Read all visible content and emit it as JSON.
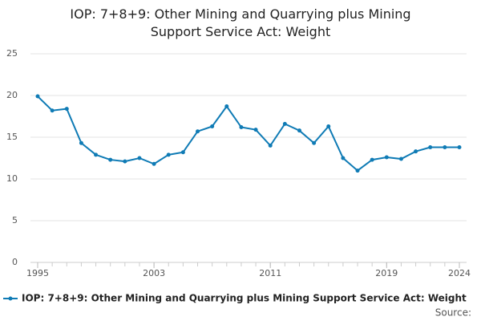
{
  "chart_data": {
    "type": "line",
    "title": "IOP: 7+8+9: Other Mining and Quarrying plus Mining Support Service Act: Weight",
    "x": [
      1995,
      1996,
      1997,
      1998,
      1999,
      2000,
      2001,
      2002,
      2003,
      2004,
      2005,
      2006,
      2007,
      2008,
      2009,
      2010,
      2011,
      2012,
      2013,
      2014,
      2015,
      2016,
      2017,
      2018,
      2019,
      2020,
      2021,
      2022,
      2023,
      2024
    ],
    "series": [
      {
        "name": "IOP: 7+8+9: Other Mining and Quarrying plus Mining Support Service Act: Weight",
        "color": "#0f7bb5",
        "values": [
          19.9,
          18.2,
          18.4,
          14.3,
          12.9,
          12.3,
          12.1,
          12.5,
          11.8,
          12.9,
          13.2,
          15.7,
          16.3,
          18.7,
          16.2,
          15.9,
          14.0,
          16.6,
          15.8,
          14.3,
          16.3,
          12.5,
          11.0,
          12.3,
          12.6,
          12.4,
          13.3,
          13.8,
          13.8,
          13.8
        ]
      }
    ],
    "xlim": [
      1995,
      2024
    ],
    "xticks": [
      1995,
      2003,
      2011,
      2019,
      2024
    ],
    "ylim": [
      0,
      25
    ],
    "yticks": [
      0,
      5,
      10,
      15,
      20,
      25
    ],
    "grid": true,
    "legend": "bottom",
    "source": "Source:"
  }
}
